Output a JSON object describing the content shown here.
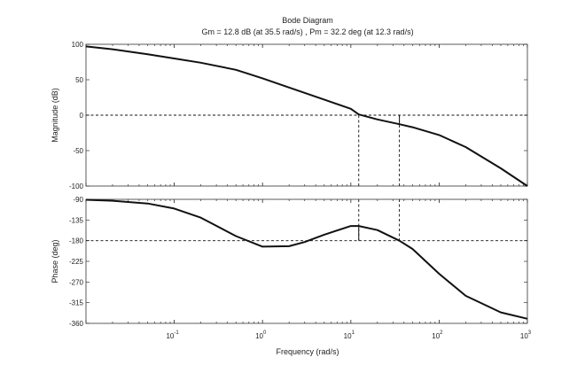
{
  "chart_data": {
    "type": "line",
    "title": "Bode Diagram",
    "subtitle": "Gm = 12.8 dB (at 35.5 rad/s) ,  Pm = 32.2 deg (at 12.3 rad/s)",
    "xlabel": "Frequency  (rad/s)",
    "x_scale": "log",
    "xlim": [
      0.01,
      1000
    ],
    "x_ticks": [
      {
        "value": 0.1,
        "base": "10",
        "exp": "-1"
      },
      {
        "value": 1,
        "base": "10",
        "exp": "0"
      },
      {
        "value": 10,
        "base": "10",
        "exp": "1"
      },
      {
        "value": 100,
        "base": "10",
        "exp": "2"
      },
      {
        "value": 1000,
        "base": "10",
        "exp": "3"
      }
    ],
    "grid": false,
    "gain_margin_db": 12.8,
    "gain_margin_freq": 35.5,
    "phase_margin_deg": 32.2,
    "phase_margin_freq": 12.3,
    "magnitude": {
      "ylabel": "Magnitude (dB)",
      "ylim": [
        -100,
        100
      ],
      "y_ticks": [
        "100",
        "50",
        "0",
        "-50",
        "-100"
      ],
      "y_tick_values": [
        100,
        50,
        0,
        -50,
        -100
      ],
      "reference_line": 0,
      "x": [
        0.01,
        0.02,
        0.05,
        0.1,
        0.2,
        0.5,
        1,
        2,
        5,
        10,
        12.3,
        20,
        35.5,
        50,
        100,
        200,
        500,
        1000
      ],
      "y": [
        97,
        93,
        86,
        80,
        74,
        64,
        52,
        39,
        22,
        9,
        1,
        -6,
        -12.8,
        -17,
        -28,
        -45,
        -75,
        -100
      ]
    },
    "phase": {
      "ylabel": "Phase (deg)",
      "ylim": [
        -360,
        -90
      ],
      "y_ticks": [
        "-90",
        "-135",
        "-180",
        "-225",
        "-270",
        "-315",
        "-360"
      ],
      "y_tick_values": [
        -90,
        -135,
        -180,
        -225,
        -270,
        -315,
        -360
      ],
      "reference_line": -180,
      "x": [
        0.01,
        0.02,
        0.05,
        0.1,
        0.2,
        0.5,
        1,
        2,
        3,
        5,
        10,
        12.3,
        20,
        35.5,
        50,
        100,
        200,
        500,
        1000
      ],
      "y": [
        -91,
        -93,
        -99,
        -110,
        -130,
        -170,
        -193,
        -192,
        -183,
        -167,
        -148,
        -148,
        -157,
        -180,
        -198,
        -252,
        -300,
        -336,
        -350
      ]
    }
  }
}
